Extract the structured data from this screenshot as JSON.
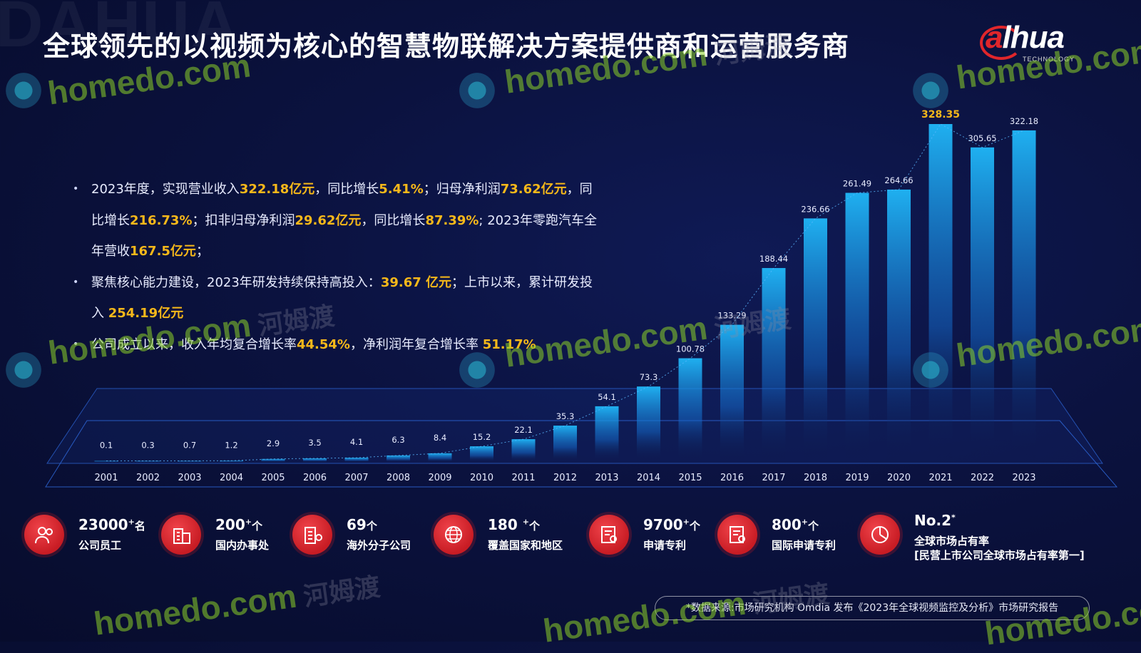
{
  "background_watermark": "DAHUA",
  "title": "全球领先的以视频为核心的智慧物联解决方案提供商和运营服务商",
  "logo": {
    "text_a": "a",
    "text_rest": "lhua",
    "sub": "TECHNOLOGY"
  },
  "bullets": [
    {
      "parts": [
        {
          "t": "2023年度，实现营业收入",
          "h": false
        },
        {
          "t": "322.18亿元",
          "h": true
        },
        {
          "t": "，同比增长",
          "h": false
        },
        {
          "t": "5.41%",
          "h": true
        },
        {
          "t": "；归母净利润",
          "h": false
        },
        {
          "t": "73.62亿元",
          "h": true
        },
        {
          "t": "，同比增长",
          "h": false
        },
        {
          "t": "216.73%",
          "h": true
        },
        {
          "t": "；扣非归母净利润",
          "h": false
        },
        {
          "t": "29.62亿元",
          "h": true
        },
        {
          "t": "，同比增长",
          "h": false
        },
        {
          "t": "87.39%",
          "h": true
        },
        {
          "t": "; 2023年零跑汽车全年营收",
          "h": false
        },
        {
          "t": "167.5亿元",
          "h": true
        },
        {
          "t": "；",
          "h": false
        }
      ]
    },
    {
      "parts": [
        {
          "t": "聚焦核心能力建设，2023年研发持续保持高投入：",
          "h": false
        },
        {
          "t": "39.67 亿元",
          "h": true
        },
        {
          "t": "；上市以来，累计研发投入 ",
          "h": false
        },
        {
          "t": "254.19亿元",
          "h": true
        }
      ]
    },
    {
      "parts": [
        {
          "t": "公司成立以来，收入年均复合增长率",
          "h": false
        },
        {
          "t": "44.54%",
          "h": true
        },
        {
          "t": "，净利润年复合增长率 ",
          "h": false
        },
        {
          "t": "51.17%",
          "h": true
        }
      ]
    }
  ],
  "chart_data": {
    "type": "bar",
    "categories": [
      "2001",
      "2002",
      "2003",
      "2004",
      "2005",
      "2006",
      "2007",
      "2008",
      "2009",
      "2010",
      "2011",
      "2012",
      "2013",
      "2014",
      "2015",
      "2016",
      "2017",
      "2018",
      "2019",
      "2020",
      "2021",
      "2022",
      "2023"
    ],
    "values": [
      0.1,
      0.3,
      0.7,
      1.2,
      2.9,
      3.5,
      4.1,
      6.3,
      8.4,
      15.2,
      22.1,
      35.3,
      54.1,
      73.3,
      100.78,
      133.29,
      188.44,
      236.66,
      261.49,
      264.66,
      328.35,
      305.65,
      322.18
    ],
    "value_labels": [
      "0.1",
      "0.3",
      "0.7",
      "1.2",
      "2.9",
      "3.5",
      "4.1",
      "6.3",
      "8.4",
      "15.2",
      "22.1",
      "35.3",
      "54.1",
      "73.3",
      "100.78",
      "133.29",
      "188.44",
      "236.66",
      "261.49",
      "264.66",
      "328.35",
      "305.65",
      "322.18"
    ],
    "highlight_index": 20,
    "highlight_color": "#f6b81a",
    "bar_color": "#1fb0f0",
    "title": "",
    "xlabel": "",
    "ylabel": "",
    "ylim": [
      0,
      328.35
    ],
    "trend_line": true
  },
  "stats": [
    {
      "num": "23000",
      "sup": "+",
      "unit": "名",
      "label": "公司员工",
      "label2": "",
      "icon": "people-icon"
    },
    {
      "num": "200",
      "sup": "+",
      "unit": "个",
      "label": "国内办事处",
      "label2": "",
      "icon": "office-building-icon"
    },
    {
      "num": "69",
      "sup": "",
      "unit": "个",
      "label": "海外分子公司",
      "label2": "",
      "icon": "overseas-office-icon"
    },
    {
      "num": "180 ",
      "sup": "+",
      "unit": "个",
      "label": "覆盖国家和地区",
      "label2": "",
      "icon": "globe-icon"
    },
    {
      "num": "9700",
      "sup": "+",
      "unit": "个",
      "label": "申请专利",
      "label2": "",
      "icon": "patent-certificate-icon"
    },
    {
      "num": "800",
      "sup": "+",
      "unit": "个",
      "label": "国际申请专利",
      "label2": "",
      "icon": "international-patent-icon"
    },
    {
      "num": "No.2",
      "sup": "*",
      "unit": "",
      "label": "全球市场占有率",
      "label2": "[民营上市公司全球市场占有率第一]",
      "icon": "pie-chart-icon"
    }
  ],
  "source_note": "*数据来源:市场研究机构 Omdia 发布《2023年全球视频监控及分析》市场研究报告",
  "watermark": {
    "text": "homedo.com",
    "cn": "河姆渡"
  },
  "colors": {
    "accent": "#f6b81a",
    "brand_red": "#e0262b",
    "bg": "#0b123f"
  }
}
